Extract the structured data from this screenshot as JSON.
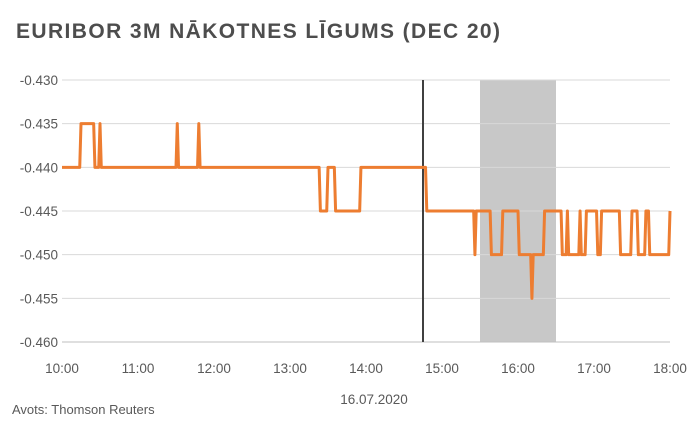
{
  "chart_data": {
    "type": "line",
    "title": "EURIBOR 3M NĀKOTNES LĪGUMS (DEC 20)",
    "xlabel": "16.07.2020",
    "ylabel": "",
    "x_ticks": [
      "10:00",
      "11:00",
      "12:00",
      "13:00",
      "14:00",
      "15:00",
      "16:00",
      "17:00",
      "18:00"
    ],
    "y_ticks": [
      "-0.430",
      "-0.435",
      "-0.440",
      "-0.445",
      "-0.450",
      "-0.455",
      "-0.460"
    ],
    "xlim": [
      "10:00",
      "18:00"
    ],
    "ylim": [
      -0.46,
      -0.43
    ],
    "grid": "horizontal",
    "vertical_line": "14:45",
    "shaded_region": [
      "15:30",
      "16:30"
    ],
    "series": [
      {
        "color": "#ED7D31",
        "points": [
          [
            "10:00",
            -0.44
          ],
          [
            "10:14",
            -0.44
          ],
          [
            "10:15",
            -0.435
          ],
          [
            "10:25",
            -0.435
          ],
          [
            "10:26",
            -0.44
          ],
          [
            "10:29",
            -0.44
          ],
          [
            "10:30",
            -0.435
          ],
          [
            "10:31",
            -0.44
          ],
          [
            "11:30",
            -0.44
          ],
          [
            "11:31",
            -0.435
          ],
          [
            "11:32",
            -0.44
          ],
          [
            "11:47",
            -0.44
          ],
          [
            "11:48",
            -0.435
          ],
          [
            "11:49",
            -0.44
          ],
          [
            "13:23",
            -0.44
          ],
          [
            "13:24",
            -0.445
          ],
          [
            "13:29",
            -0.445
          ],
          [
            "13:30",
            -0.44
          ],
          [
            "13:35",
            -0.44
          ],
          [
            "13:36",
            -0.445
          ],
          [
            "13:55",
            -0.445
          ],
          [
            "13:56",
            -0.44
          ],
          [
            "14:47",
            -0.44
          ],
          [
            "14:48",
            -0.445
          ],
          [
            "15:25",
            -0.445
          ],
          [
            "15:26",
            -0.45
          ],
          [
            "15:27",
            -0.445
          ],
          [
            "15:38",
            -0.445
          ],
          [
            "15:39",
            -0.45
          ],
          [
            "15:47",
            -0.45
          ],
          [
            "15:48",
            -0.445
          ],
          [
            "16:00",
            -0.445
          ],
          [
            "16:01",
            -0.45
          ],
          [
            "16:10",
            -0.45
          ],
          [
            "16:11",
            -0.455
          ],
          [
            "16:12",
            -0.45
          ],
          [
            "16:20",
            -0.45
          ],
          [
            "16:21",
            -0.445
          ],
          [
            "16:34",
            -0.445
          ],
          [
            "16:35",
            -0.45
          ],
          [
            "16:38",
            -0.45
          ],
          [
            "16:39",
            -0.445
          ],
          [
            "16:40",
            -0.45
          ],
          [
            "16:48",
            -0.45
          ],
          [
            "16:49",
            -0.445
          ],
          [
            "16:50",
            -0.45
          ],
          [
            "16:53",
            -0.45
          ],
          [
            "16:54",
            -0.445
          ],
          [
            "17:02",
            -0.445
          ],
          [
            "17:03",
            -0.45
          ],
          [
            "17:05",
            -0.45
          ],
          [
            "17:06",
            -0.445
          ],
          [
            "17:20",
            -0.445
          ],
          [
            "17:21",
            -0.45
          ],
          [
            "17:29",
            -0.45
          ],
          [
            "17:30",
            -0.445
          ],
          [
            "17:34",
            -0.445
          ],
          [
            "17:35",
            -0.45
          ],
          [
            "17:40",
            -0.45
          ],
          [
            "17:41",
            -0.445
          ],
          [
            "17:43",
            -0.445
          ],
          [
            "17:44",
            -0.45
          ],
          [
            "17:59",
            -0.45
          ],
          [
            "18:00",
            -0.445
          ]
        ]
      }
    ]
  },
  "source": "Avots: Thomson Reuters"
}
